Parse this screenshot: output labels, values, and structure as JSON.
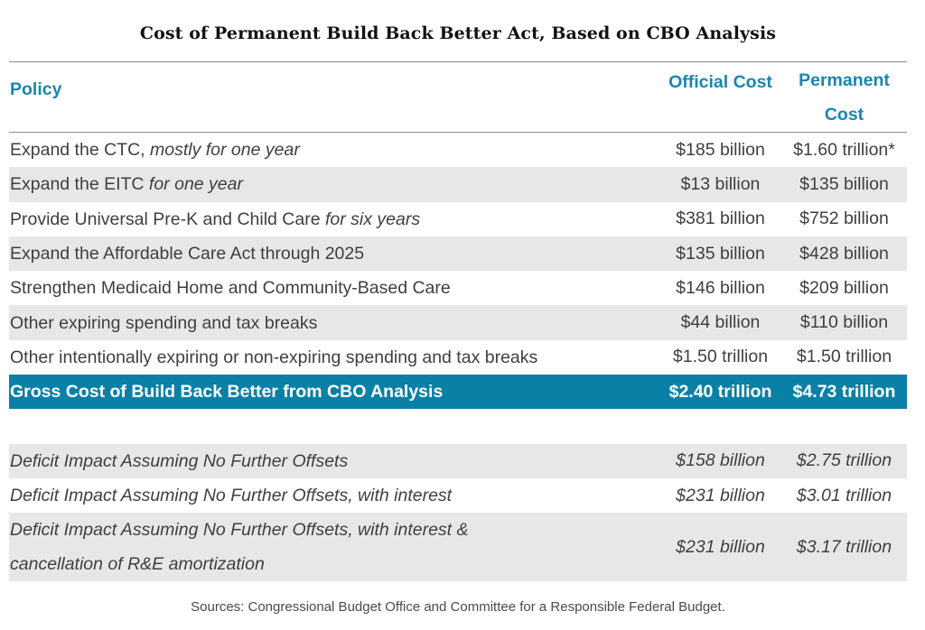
{
  "title": "Cost of Permanent Build Back Better Act, Based on CBO Analysis",
  "headers": {
    "policy": "Policy",
    "official": "Official Cost",
    "permanent_line1": "Permanent",
    "permanent_line2": "Cost"
  },
  "rows": [
    {
      "policy": "Expand the CTC, ",
      "policy_italic": "mostly for one year",
      "official": "$185 billion",
      "permanent": "$1.60 trillion*"
    },
    {
      "policy": "Expand the EITC ",
      "policy_italic": "for one year",
      "official": "$13 billion",
      "permanent": "$135 billion"
    },
    {
      "policy": "Provide Universal Pre-K and Child Care ",
      "policy_italic": "for six years",
      "official": "$381 billion",
      "permanent": "$752 billion"
    },
    {
      "policy": "Expand the Affordable Care Act through 2025",
      "official": "$135 billion",
      "permanent": "$428 billion"
    },
    {
      "policy": "Strengthen Medicaid Home and Community-Based Care",
      "official": "$146 billion",
      "permanent": "$209 billion"
    },
    {
      "policy": "Other expiring spending and tax breaks",
      "official": "$44 billion",
      "permanent": "$110 billion"
    },
    {
      "policy": "Other intentionally expiring or non-expiring spending and tax breaks",
      "official": "$1.50 trillion",
      "permanent": "$1.50 trillion"
    }
  ],
  "total": {
    "policy": "Gross Cost of Build Back Better from CBO Analysis",
    "official": "$2.40 trillion",
    "permanent": "$4.73 trillion"
  },
  "deficit_rows": [
    {
      "policy": "Deficit Impact Assuming No Further Offsets",
      "official": "$158 billion",
      "permanent": "$2.75 trillion"
    },
    {
      "policy": "Deficit Impact Assuming No Further Offsets, with interest",
      "official": "$231 billion",
      "permanent": "$3.01 trillion"
    },
    {
      "policy_line1": "Deficit Impact Assuming No Further Offsets, with interest &",
      "policy_line2": "cancellation of R&E amortization",
      "official": "$231 billion",
      "permanent": "$3.17 trillion"
    }
  ],
  "source": "Sources: Congressional Budget Office and Committee for a Responsible Federal Budget."
}
